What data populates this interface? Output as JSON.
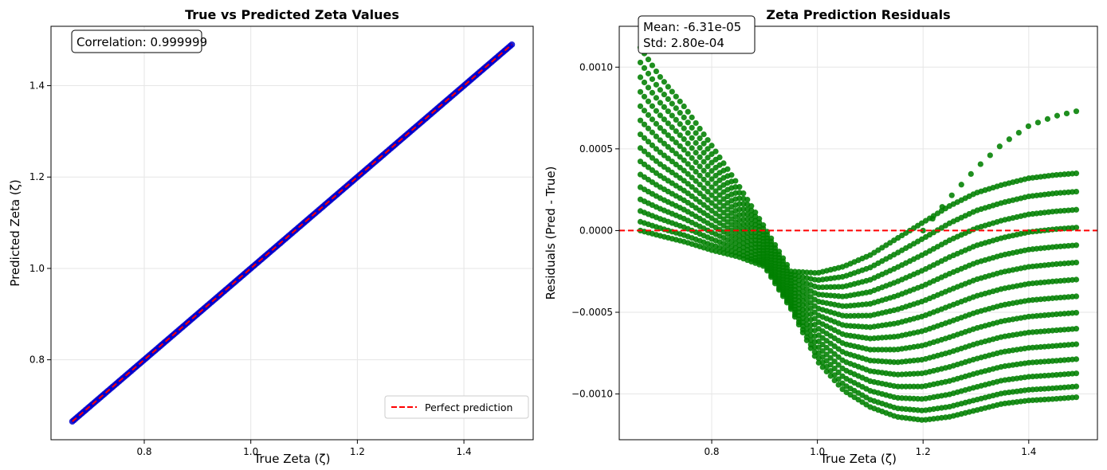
{
  "chart_data": [
    {
      "type": "scatter",
      "title": "True vs Predicted Zeta Values",
      "xlabel": "True Zeta (ζ)",
      "ylabel": "Predicted Zeta (ζ)",
      "xlim": [
        0.625,
        1.53
      ],
      "ylim": [
        0.625,
        1.53
      ],
      "xticks": [
        0.8,
        1.0,
        1.2,
        1.4
      ],
      "xtick_labels": [
        "0.8",
        "1.0",
        "1.2",
        "1.4"
      ],
      "yticks": [
        0.8,
        1.0,
        1.2,
        1.4
      ],
      "ytick_labels": [
        "0.8",
        "1.0",
        "1.2",
        "1.4"
      ],
      "grid": true,
      "annotation": "Correlation: 0.999999",
      "legend_position": "bottom-right",
      "legend": [
        "Perfect prediction"
      ],
      "point_color": "#0000cc",
      "line_color": "#ff0000",
      "data_range": [
        0.665,
        1.49
      ],
      "series": [
        {
          "kind": "scatter",
          "x": [
            0.665,
            0.68,
            0.7,
            0.72,
            0.74,
            0.76,
            0.78,
            0.8,
            0.82,
            0.84,
            0.86,
            0.88,
            0.9,
            0.92,
            0.94,
            0.96,
            0.98,
            1.0,
            1.02,
            1.04,
            1.06,
            1.08,
            1.1,
            1.12,
            1.14,
            1.16,
            1.18,
            1.2,
            1.22,
            1.24,
            1.26,
            1.28,
            1.3,
            1.32,
            1.34,
            1.36,
            1.38,
            1.4,
            1.42,
            1.44,
            1.46,
            1.48,
            1.49
          ],
          "y": [
            0.665,
            0.68,
            0.7,
            0.72,
            0.74,
            0.76,
            0.78,
            0.8,
            0.82,
            0.84,
            0.86,
            0.88,
            0.9,
            0.92,
            0.94,
            0.96,
            0.98,
            1.0,
            1.02,
            1.04,
            1.06,
            1.08,
            1.1,
            1.12,
            1.14,
            1.16,
            1.18,
            1.2,
            1.22,
            1.24,
            1.26,
            1.28,
            1.3,
            1.32,
            1.34,
            1.36,
            1.38,
            1.4,
            1.42,
            1.44,
            1.46,
            1.48,
            1.49
          ]
        },
        {
          "name": "Perfect prediction",
          "kind": "line",
          "style": "dashed",
          "x": [
            0.665,
            1.49
          ],
          "y": [
            0.665,
            1.49
          ]
        }
      ]
    },
    {
      "type": "scatter",
      "title": "Zeta Prediction Residuals",
      "xlabel": "True Zeta (ζ)",
      "ylabel": "Residuals (Pred - True)",
      "xlim": [
        0.625,
        1.53
      ],
      "ylim": [
        -0.00128,
        0.00125
      ],
      "xticks": [
        0.8,
        1.0,
        1.2,
        1.4
      ],
      "xtick_labels": [
        "0.8",
        "1.0",
        "1.2",
        "1.4"
      ],
      "yticks": [
        -0.001,
        -0.0005,
        0.0,
        0.0005,
        0.001
      ],
      "ytick_labels": [
        "−0.0010",
        "−0.0005",
        "0.0000",
        "0.0005",
        "0.0010"
      ],
      "grid": true,
      "annotation_lines": [
        "Mean: -6.31e-05",
        "Std: 2.80e-04"
      ],
      "point_color": "#008000",
      "zero_line_color": "#ff0000",
      "zero_line": 0.0,
      "envelope": {
        "x": [
          0.665,
          0.7,
          0.75,
          0.8,
          0.85,
          0.9,
          0.95,
          1.0,
          1.05,
          1.1,
          1.15,
          1.2,
          1.25,
          1.3,
          1.35,
          1.4,
          1.45,
          1.49
        ],
        "upper": [
          0.00112,
          0.00095,
          0.00075,
          0.00052,
          0.00028,
          2e-05,
          -0.00025,
          -0.00026,
          -0.00022,
          -0.00015,
          -5e-05,
          5e-05,
          0.00015,
          0.00023,
          0.00028,
          0.00032,
          0.00034,
          0.00035
        ],
        "lower": [
          0.0,
          -3e-05,
          -7e-05,
          -0.00012,
          -0.00016,
          -0.00022,
          -0.00048,
          -0.0008,
          -0.00098,
          -0.00108,
          -0.00114,
          -0.00116,
          -0.00114,
          -0.0011,
          -0.00106,
          -0.00104,
          -0.00103,
          -0.00102
        ]
      },
      "top_curve": {
        "x": [
          1.2,
          1.25,
          1.3,
          1.35,
          1.4,
          1.45,
          1.49
        ],
        "y": [
          0.0,
          0.0002,
          0.00038,
          0.00053,
          0.00064,
          0.0007,
          0.00073
        ]
      }
    }
  ]
}
